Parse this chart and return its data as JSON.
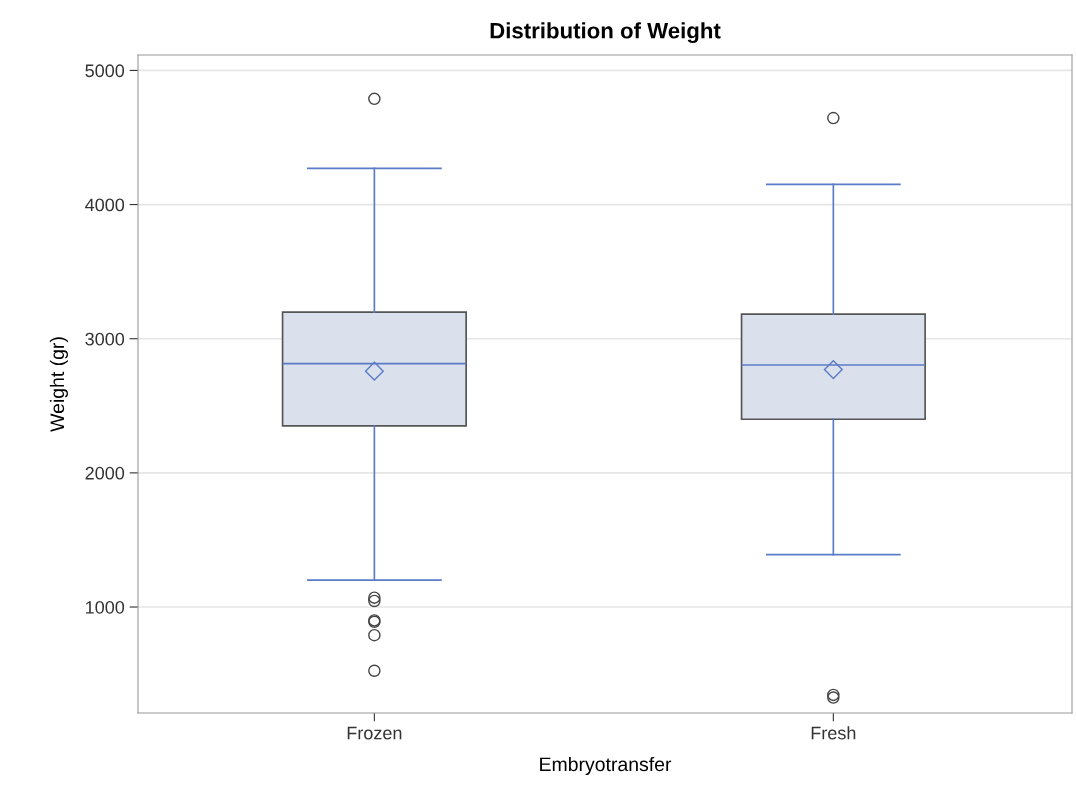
{
  "chart_data": {
    "type": "box",
    "title": "Distribution of Weight",
    "xlabel": "Embryotransfer",
    "ylabel": "Weight (gr)",
    "categories": [
      "Frozen",
      "Fresh"
    ],
    "boxes": [
      {
        "low": 1200,
        "q1": 2350,
        "median": 2815,
        "q3": 3198,
        "high": 4270,
        "mean": 2758,
        "outliers": [
          4788,
          1070,
          1045,
          900,
          890,
          790,
          525
        ]
      },
      {
        "low": 1390,
        "q1": 2400,
        "median": 2804,
        "q3": 3183,
        "high": 4151,
        "mean": 2770,
        "outliers": [
          4645,
          345,
          325
        ]
      }
    ],
    "color": "#dae1ec",
    "ylim": [
      210,
      5115
    ],
    "yticks": [
      1000,
      2000,
      3000,
      4000,
      5000
    ],
    "grid": "y"
  }
}
